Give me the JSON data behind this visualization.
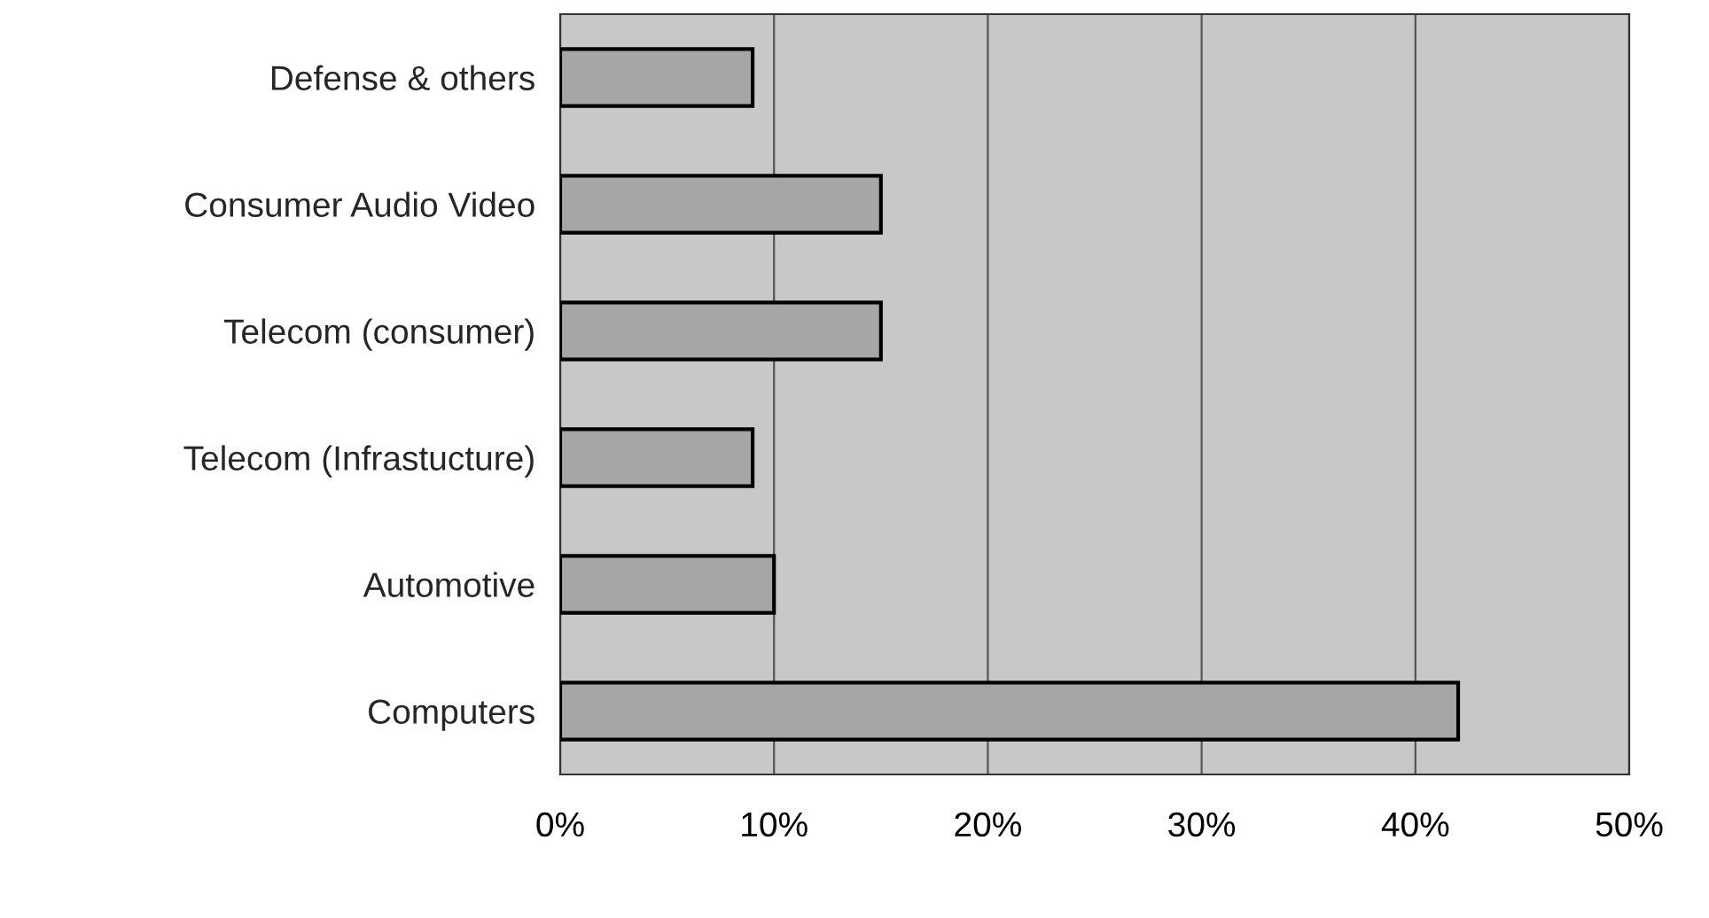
{
  "chart_data": {
    "type": "bar",
    "orientation": "horizontal",
    "categories": [
      "Defense & others",
      "Consumer Audio Video",
      "Telecom (consumer)",
      "Telecom (Infrastucture)",
      "Automotive",
      "Computers"
    ],
    "values": [
      9,
      15,
      15,
      9,
      10,
      42
    ],
    "color": "#a6a6a6",
    "xlim": [
      0,
      50
    ],
    "xticks": [
      {
        "value": 0,
        "label": "0%"
      },
      {
        "value": 10,
        "label": "10%"
      },
      {
        "value": 20,
        "label": "20%"
      },
      {
        "value": 30,
        "label": "30%"
      },
      {
        "value": 40,
        "label": "40%"
      },
      {
        "value": 50,
        "label": "50%"
      }
    ],
    "grid": "x",
    "legend": false
  }
}
